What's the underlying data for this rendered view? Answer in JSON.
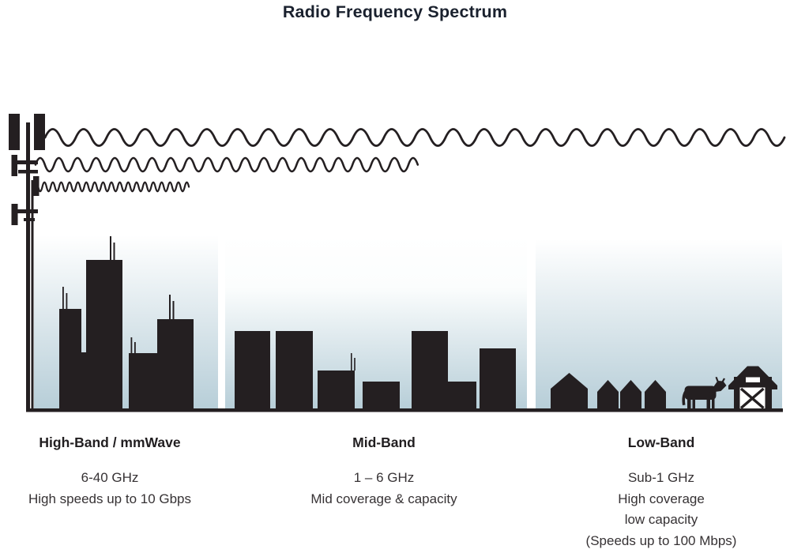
{
  "title": "Radio Frequency Spectrum",
  "bands": [
    {
      "name": "High-Band / mmWave",
      "frequency": "6-40 GHz",
      "details": [
        "High speeds up to 10 Gbps"
      ],
      "scene": "city-skyscrapers-silhouette"
    },
    {
      "name": "Mid-Band",
      "frequency": "1 – 6 GHz",
      "details": [
        "Mid coverage & capacity"
      ],
      "scene": "mid-rise-buildings-silhouette"
    },
    {
      "name": "Low-Band",
      "frequency": "Sub-1 GHz",
      "details": [
        "High coverage",
        "low capacity",
        "(Speeds up to 100 Mbps)"
      ],
      "scene": "rural-houses-cow-barn-silhouette"
    }
  ],
  "waves": [
    {
      "name": "long-wavelength-wave"
    },
    {
      "name": "medium-wavelength-wave"
    },
    {
      "name": "short-wavelength-wave"
    }
  ],
  "tower": {
    "name": "cell-tower"
  },
  "colors": {
    "silhouette": "#241f21",
    "sky_top": "#ffffff",
    "sky_bottom": "#b7ced8",
    "title_text": "#1a212e",
    "body_text": "#363234"
  }
}
